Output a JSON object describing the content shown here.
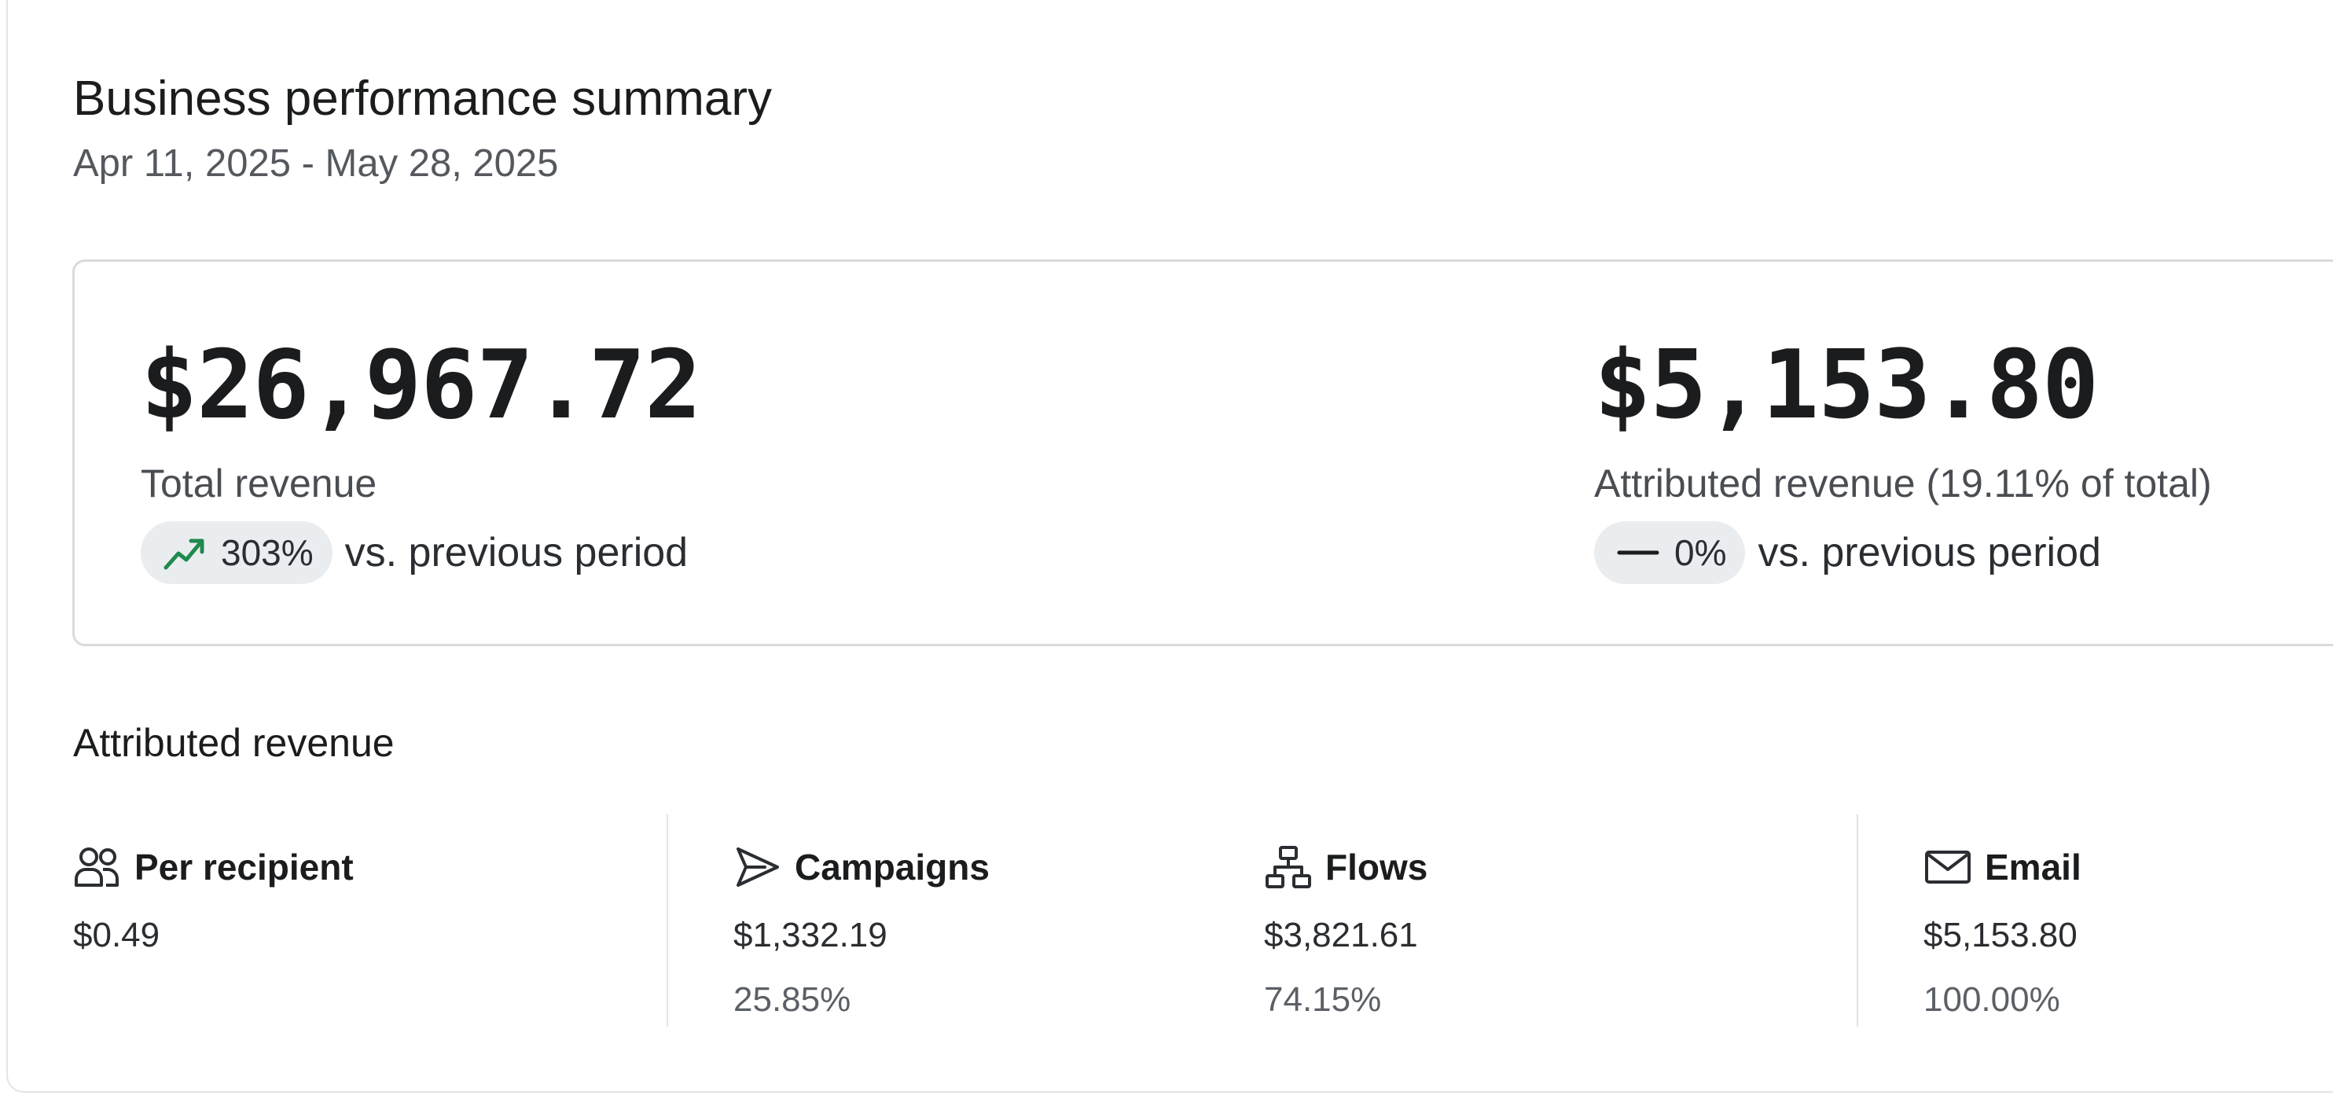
{
  "header": {
    "title": "Business performance summary",
    "date_range": "Apr 11, 2025 - May 28, 2025"
  },
  "kpis": [
    {
      "value": "$26,967.72",
      "label": "Total revenue",
      "change": "303%",
      "change_icon": "trend-up-icon",
      "change_color": "#1f8a4c",
      "vs_text": "vs. previous period"
    },
    {
      "value": "$5,153.80",
      "label": "Attributed revenue (19.11% of total)",
      "change": "0%",
      "change_icon": "dash-icon",
      "vs_text": "vs. previous period"
    }
  ],
  "attributed": {
    "title": "Attributed revenue",
    "metrics": [
      {
        "icon": "people-icon",
        "title": "Per recipient",
        "value": "$0.49"
      },
      {
        "icon": "send-icon",
        "title": "Campaigns",
        "value": "$1,332.19",
        "percent": "25.85%"
      },
      {
        "icon": "flow-icon",
        "title": "Flows",
        "value": "$3,821.61",
        "percent": "74.15%"
      },
      {
        "icon": "email-icon",
        "title": "Email",
        "value": "$5,153.80",
        "percent": "100.00%"
      }
    ]
  }
}
